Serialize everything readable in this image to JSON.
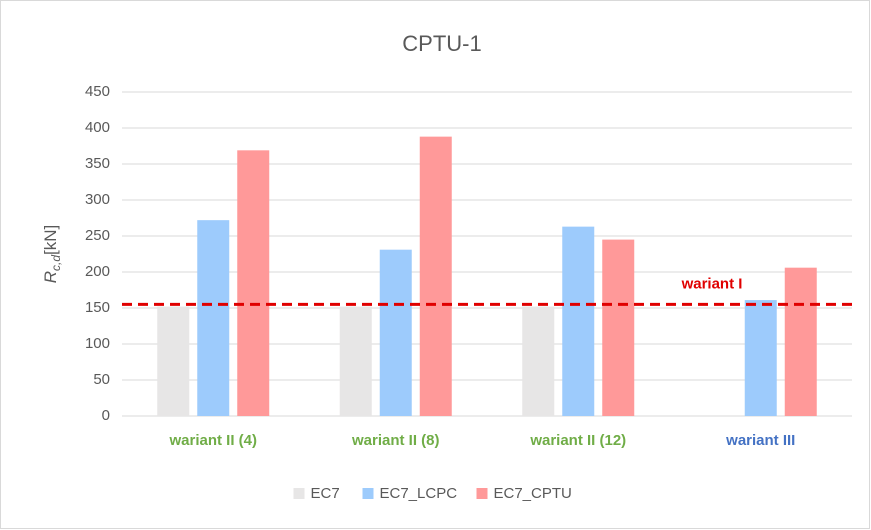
{
  "chart_data": {
    "type": "bar",
    "title": "CPTU-1",
    "y_label": {
      "symbol": "R",
      "subscript": "c,d",
      "unit": "[kN]"
    },
    "categories": [
      "wariant II (4)",
      "wariant II (8)",
      "wariant II (12)",
      "wariant III"
    ],
    "category_colors": [
      "#70ad47",
      "#70ad47",
      "#70ad47",
      "#4472c4"
    ],
    "series": [
      {
        "name": "EC7",
        "color": "#e7e6e6",
        "values": [
          152,
          152,
          152,
          null
        ]
      },
      {
        "name": "EC7_LCPC",
        "color": "#9dcbfc",
        "values": [
          272,
          231,
          263,
          161
        ]
      },
      {
        "name": "EC7_CPTU",
        "color": "#ff9999",
        "values": [
          369,
          388,
          245,
          206
        ]
      }
    ],
    "reference_line": {
      "value": 155,
      "label": "wariant I",
      "color": "#e00000"
    },
    "ylim": [
      0,
      450
    ],
    "yticks": [
      0,
      50,
      100,
      150,
      200,
      250,
      300,
      350,
      400,
      450
    ],
    "grid": true,
    "legend": "bottom"
  }
}
